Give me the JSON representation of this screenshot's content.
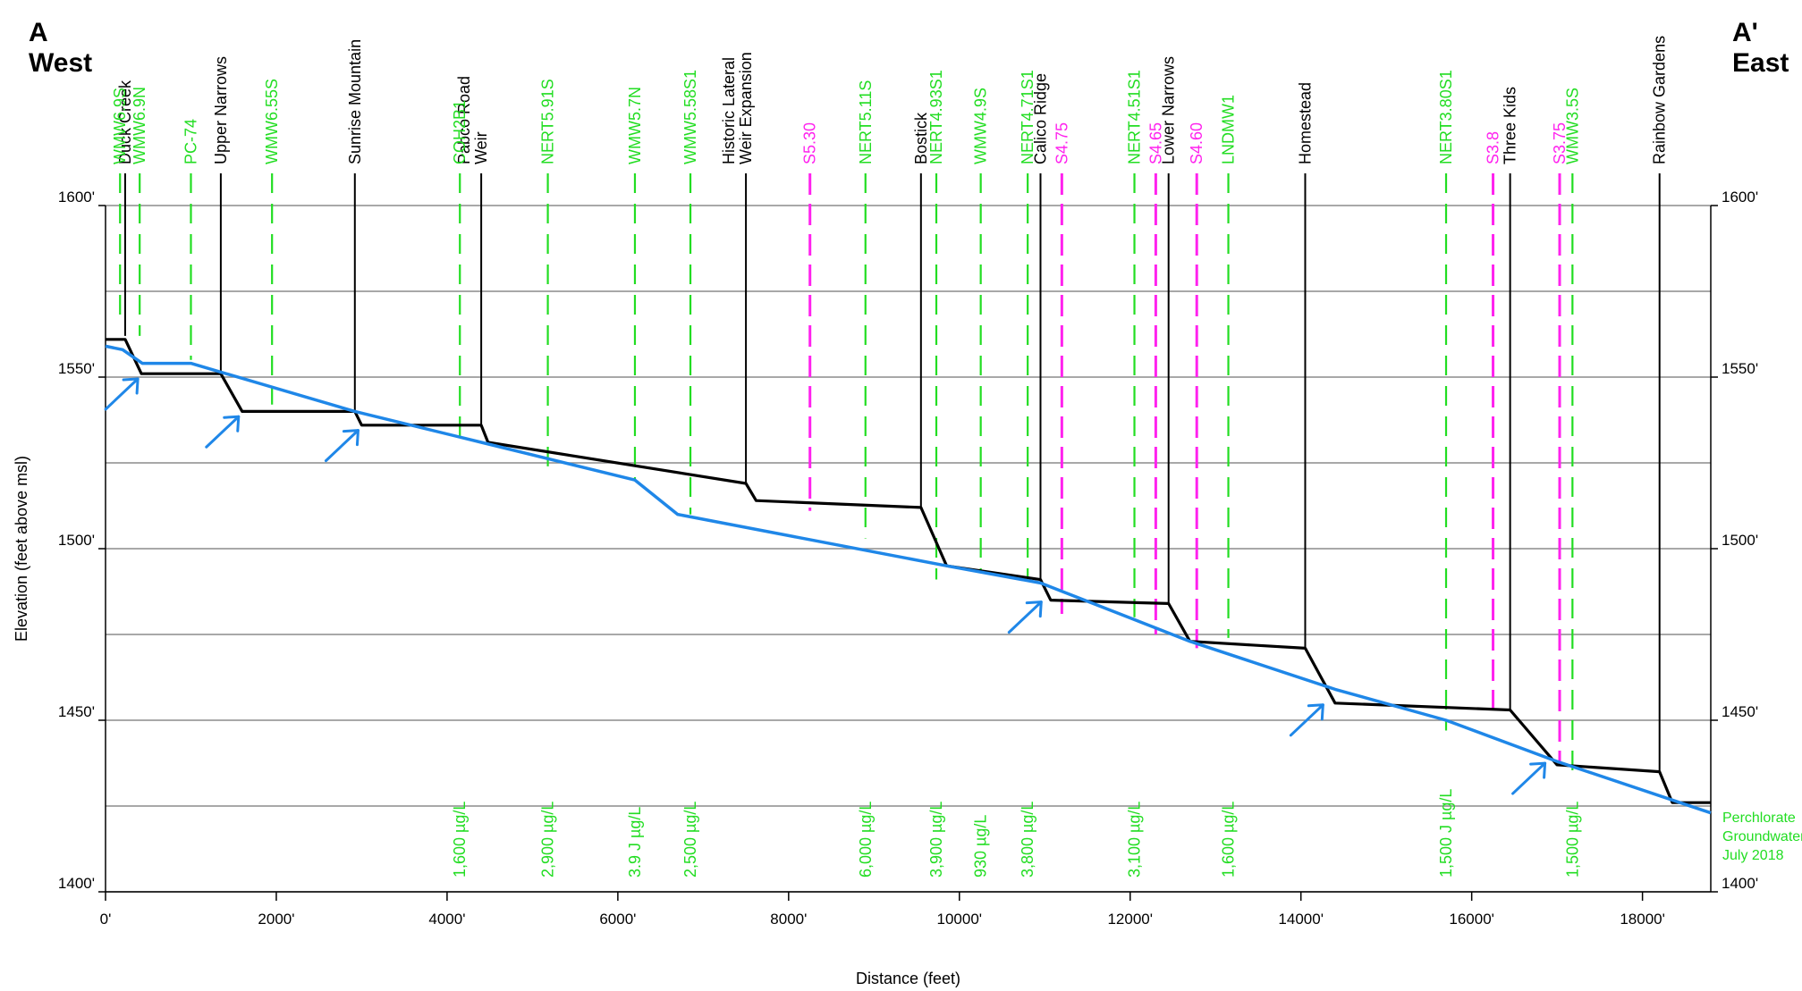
{
  "chart_data": {
    "type": "line",
    "corner_left": {
      "letter": "A",
      "direction": "West"
    },
    "corner_right": {
      "letter": "A'",
      "direction": "East"
    },
    "xlabel": "Distance (feet)",
    "ylabel": "Elevation (feet above msl)",
    "xlim": [
      0,
      18800
    ],
    "ylim": [
      1400,
      1600
    ],
    "x_ticks": [
      0,
      2000,
      4000,
      6000,
      8000,
      10000,
      12000,
      14000,
      16000,
      18000
    ],
    "x_tick_labels": [
      "0'",
      "2000'",
      "4000'",
      "6000'",
      "8000'",
      "10000'",
      "12000'",
      "14000'",
      "16000'",
      "18000'"
    ],
    "y_ticks": [
      1400,
      1450,
      1500,
      1550,
      1600
    ],
    "y_tick_labels": [
      "1400'",
      "1450'",
      "1500'",
      "1550'",
      "1600'"
    ],
    "grid_y": [
      1400,
      1425,
      1450,
      1475,
      1500,
      1525,
      1550,
      1575,
      1600
    ],
    "colors": {
      "ground": "#000000",
      "water": "#1f87e8",
      "wells": "#22dd22",
      "seeps": "#ff22ee",
      "grid": "#8c8c8c",
      "arrow": "#1f87e8"
    },
    "series": [
      {
        "key": "ground",
        "x": [
          0,
          230,
          420,
          1350,
          1600,
          2920,
          3000,
          4400,
          4480,
          7500,
          7620,
          9550,
          9850,
          10950,
          11070,
          12450,
          12700,
          14050,
          14400,
          16450,
          17000,
          18200,
          18350,
          18800
        ],
        "y": [
          1561,
          1561,
          1551,
          1551,
          1540,
          1540,
          1536,
          1536,
          1531,
          1519,
          1514,
          1512,
          1495,
          1491,
          1485,
          1484,
          1473,
          1471,
          1455,
          1453,
          1437,
          1435,
          1426,
          1426
        ]
      },
      {
        "key": "water",
        "x": [
          0,
          200,
          430,
          1000,
          2920,
          4400,
          6200,
          6700,
          9850,
          10950,
          12700,
          14400,
          15700,
          17000,
          18800
        ],
        "y": [
          1559,
          1558,
          1554,
          1554,
          1540,
          1531,
          1520,
          1510,
          1495,
          1490,
          1473,
          1459,
          1450,
          1438,
          1423
        ]
      }
    ],
    "locations": [
      {
        "label": "Duck Creek",
        "x": 230,
        "type": "weir",
        "top": 1562
      },
      {
        "label": "Upper Narrows",
        "x": 1350,
        "type": "weir",
        "top": 1551
      },
      {
        "label": "Sunrise Mountain",
        "x": 2920,
        "type": "weir",
        "top": 1540
      },
      {
        "label": "Pabco Road\nWeir",
        "x": 4400,
        "type": "weir",
        "top": 1536
      },
      {
        "label": "Historic Lateral\nWeir Expansion",
        "x": 7500,
        "type": "weir",
        "top": 1519
      },
      {
        "label": "Bostick",
        "x": 9550,
        "type": "weir",
        "top": 1512
      },
      {
        "label": "Calico Ridge",
        "x": 10950,
        "type": "weir",
        "top": 1491
      },
      {
        "label": "Lower Narrows",
        "x": 12450,
        "type": "weir",
        "top": 1484
      },
      {
        "label": "Homestead",
        "x": 14050,
        "type": "weir",
        "top": 1471
      },
      {
        "label": "Three Kids",
        "x": 16450,
        "type": "weir",
        "top": 1453
      },
      {
        "label": "Rainbow Gardens",
        "x": 18200,
        "type": "weir",
        "top": 1435
      },
      {
        "label": "WMW6.9S",
        "x": 170,
        "type": "well",
        "top": 1567
      },
      {
        "label": "WMW6.9N",
        "x": 400,
        "type": "well",
        "top": 1562
      },
      {
        "label": "PC-74",
        "x": 1000,
        "type": "well",
        "top": 1555
      },
      {
        "label": "WMW6.55S",
        "x": 1950,
        "type": "well",
        "top": 1542
      },
      {
        "label": "COH2B1",
        "x": 4150,
        "type": "well",
        "top": 1530,
        "conc": "1,600 µg/L"
      },
      {
        "label": "NERT5.91S",
        "x": 5180,
        "type": "well",
        "top": 1524,
        "conc": "2,900 µg/L"
      },
      {
        "label": "WMW5.7N",
        "x": 6200,
        "type": "well",
        "top": 1520,
        "conc": "3.9 J µg/L"
      },
      {
        "label": "WMW5.58S1",
        "x": 6850,
        "type": "well",
        "top": 1510,
        "conc": "2,500 µg/L"
      },
      {
        "label": "S5.30",
        "x": 8250,
        "type": "seep",
        "top": 1511
      },
      {
        "label": "NERT5.11S",
        "x": 8900,
        "type": "well",
        "top": 1503,
        "conc": "6,000 µg/L"
      },
      {
        "label": "NERT4.93S1",
        "x": 9730,
        "type": "well",
        "top": 1491,
        "conc": "3,900 µg/L"
      },
      {
        "label": "WMW4.9S",
        "x": 10250,
        "type": "well",
        "top": 1493,
        "conc": "930 µg/L"
      },
      {
        "label": "NERT4.71S1",
        "x": 10800,
        "type": "well",
        "top": 1491,
        "conc": "3,800 µg/L"
      },
      {
        "label": "S4.75",
        "x": 11200,
        "type": "seep",
        "top": 1481
      },
      {
        "label": "NERT4.51S1",
        "x": 12050,
        "type": "well",
        "top": 1480,
        "conc": "3,100 µg/L"
      },
      {
        "label": "S4.65",
        "x": 12300,
        "type": "seep",
        "top": 1475
      },
      {
        "label": "S4.60",
        "x": 12780,
        "type": "seep",
        "top": 1471
      },
      {
        "label": "LNDMW1",
        "x": 13150,
        "type": "well",
        "top": 1474,
        "conc": "1,600 µg/L"
      },
      {
        "label": "NERT3.80S1",
        "x": 15700,
        "type": "well",
        "top": 1447,
        "conc": "1,500 J µg/L"
      },
      {
        "label": "S3.8",
        "x": 16250,
        "type": "seep",
        "top": 1453
      },
      {
        "label": "S3.75",
        "x": 17030,
        "type": "seep",
        "top": 1438
      },
      {
        "label": "WMW3.5S",
        "x": 17180,
        "type": "well",
        "top": 1435,
        "conc": "1,500 µg/L"
      }
    ],
    "inflow_arrows": [
      {
        "x": 420,
        "y": 1550
      },
      {
        "x": 1600,
        "y": 1539
      },
      {
        "x": 3000,
        "y": 1535
      },
      {
        "x": 11000,
        "y": 1485
      },
      {
        "x": 14300,
        "y": 1455
      },
      {
        "x": 16900,
        "y": 1438
      }
    ],
    "annotation_lines": [
      "Perchlorate",
      "Groundwater",
      "July 2018"
    ]
  }
}
